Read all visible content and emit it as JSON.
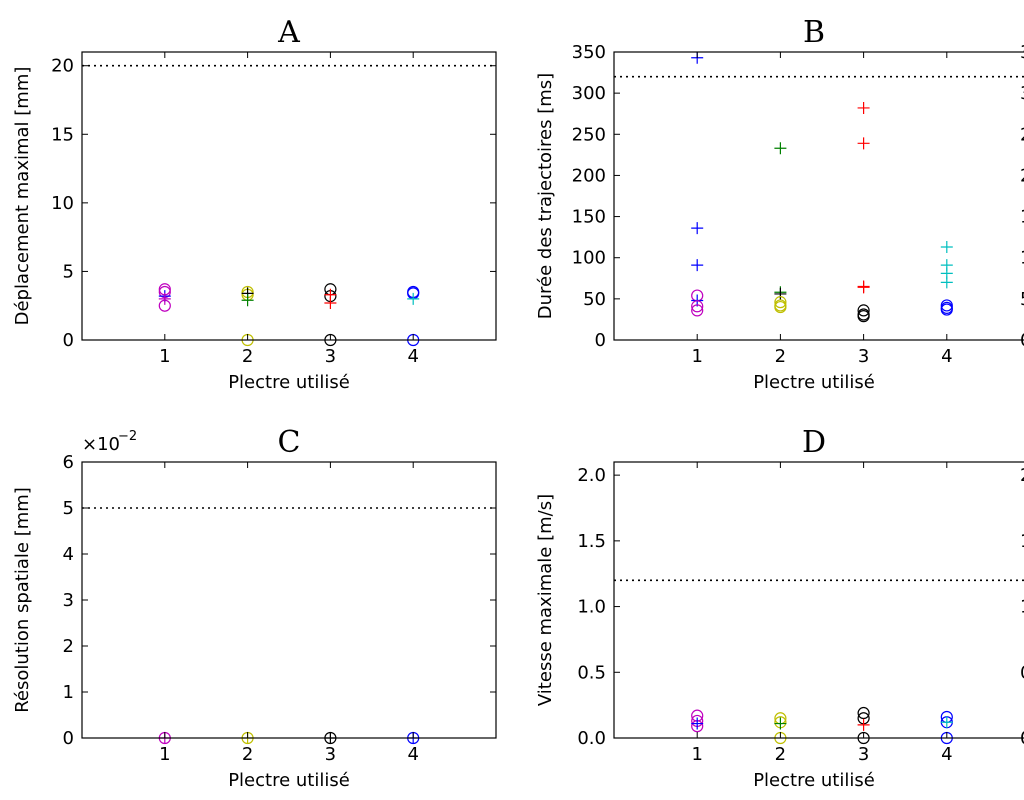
{
  "colors": {
    "magenta": "#bf00bf",
    "yellow": "#bfbf00",
    "black": "#000000",
    "blue": "#0000ff",
    "red": "#ff0000",
    "green": "#008000",
    "cyan": "#00bfbf"
  },
  "chart_data": [
    {
      "type": "scatter",
      "title": "A",
      "xlabel": "Plectre utilisé",
      "ylabel": "Déplacement maximal [mm]",
      "xlim": [
        0,
        5
      ],
      "ylim": [
        0,
        21
      ],
      "xticks": [
        1,
        2,
        3,
        4
      ],
      "xtick_labels": [
        "1",
        "2",
        "3",
        "4"
      ],
      "yticks": [
        0,
        5,
        10,
        15,
        20
      ],
      "ytick_labels": [
        "0",
        "5",
        "10",
        "15",
        "20"
      ],
      "offset_text": "",
      "reference_line": 20,
      "right_edge_labels": false,
      "points": [
        {
          "x": 1,
          "y": 3.7,
          "marker": "circle",
          "color": "#bf00bf"
        },
        {
          "x": 1,
          "y": 3.5,
          "marker": "circle",
          "color": "#bf00bf"
        },
        {
          "x": 1,
          "y": 2.5,
          "marker": "circle",
          "color": "#bf00bf"
        },
        {
          "x": 1,
          "y": 3.2,
          "marker": "plus",
          "color": "#0000ff"
        },
        {
          "x": 1,
          "y": 3.0,
          "marker": "plus",
          "color": "#bf00bf"
        },
        {
          "x": 2,
          "y": 3.5,
          "marker": "circle",
          "color": "#bfbf00"
        },
        {
          "x": 2,
          "y": 3.3,
          "marker": "circle",
          "color": "#bfbf00"
        },
        {
          "x": 2,
          "y": 0.0,
          "marker": "circle",
          "color": "#bfbf00"
        },
        {
          "x": 2,
          "y": 3.4,
          "marker": "plus",
          "color": "#000000"
        },
        {
          "x": 2,
          "y": 2.9,
          "marker": "plus",
          "color": "#008000"
        },
        {
          "x": 3,
          "y": 3.7,
          "marker": "circle",
          "color": "#000000"
        },
        {
          "x": 3,
          "y": 3.2,
          "marker": "circle",
          "color": "#000000"
        },
        {
          "x": 3,
          "y": 0.0,
          "marker": "circle",
          "color": "#000000"
        },
        {
          "x": 3,
          "y": 2.7,
          "marker": "plus",
          "color": "#ff0000"
        },
        {
          "x": 3,
          "y": 3.3,
          "marker": "plus",
          "color": "#ff0000"
        },
        {
          "x": 4,
          "y": 3.5,
          "marker": "circle",
          "color": "#0000ff"
        },
        {
          "x": 4,
          "y": 3.4,
          "marker": "circle",
          "color": "#0000ff"
        },
        {
          "x": 4,
          "y": 0.0,
          "marker": "circle",
          "color": "#0000ff"
        },
        {
          "x": 4,
          "y": 3.0,
          "marker": "plus",
          "color": "#00bfbf"
        }
      ]
    },
    {
      "type": "scatter",
      "title": "B",
      "xlabel": "Plectre utilisé",
      "ylabel": "Durée des trajectoires [ms]",
      "xlim": [
        0,
        5
      ],
      "ylim": [
        0,
        350
      ],
      "xticks": [
        1,
        2,
        3,
        4
      ],
      "xtick_labels": [
        "1",
        "2",
        "3",
        "4"
      ],
      "yticks": [
        0,
        50,
        100,
        150,
        200,
        250,
        300,
        350
      ],
      "ytick_labels": [
        "0",
        "50",
        "100",
        "150",
        "200",
        "250",
        "300",
        "350"
      ],
      "offset_text": "",
      "reference_line": 320,
      "right_edge_labels": true,
      "points": [
        {
          "x": 1,
          "y": 343,
          "marker": "plus",
          "color": "#0000ff"
        },
        {
          "x": 1,
          "y": 136,
          "marker": "plus",
          "color": "#0000ff"
        },
        {
          "x": 1,
          "y": 91,
          "marker": "plus",
          "color": "#0000ff"
        },
        {
          "x": 1,
          "y": 54,
          "marker": "circle",
          "color": "#bf00bf"
        },
        {
          "x": 1,
          "y": 48,
          "marker": "plus",
          "color": "#0000ff"
        },
        {
          "x": 1,
          "y": 41,
          "marker": "circle",
          "color": "#bf00bf"
        },
        {
          "x": 1,
          "y": 36,
          "marker": "circle",
          "color": "#bf00bf"
        },
        {
          "x": 2,
          "y": 233,
          "marker": "plus",
          "color": "#008000"
        },
        {
          "x": 2,
          "y": 58,
          "marker": "plus",
          "color": "#008000"
        },
        {
          "x": 2,
          "y": 56,
          "marker": "plus",
          "color": "#000000"
        },
        {
          "x": 2,
          "y": 46,
          "marker": "circle",
          "color": "#bfbf00"
        },
        {
          "x": 2,
          "y": 42,
          "marker": "circle",
          "color": "#bfbf00"
        },
        {
          "x": 2,
          "y": 40,
          "marker": "circle",
          "color": "#bfbf00"
        },
        {
          "x": 3,
          "y": 282,
          "marker": "plus",
          "color": "#ff0000"
        },
        {
          "x": 3,
          "y": 239,
          "marker": "plus",
          "color": "#ff0000"
        },
        {
          "x": 3,
          "y": 65,
          "marker": "plus",
          "color": "#ff0000"
        },
        {
          "x": 3,
          "y": 64,
          "marker": "plus",
          "color": "#ff0000"
        },
        {
          "x": 3,
          "y": 36,
          "marker": "circle",
          "color": "#000000"
        },
        {
          "x": 3,
          "y": 31,
          "marker": "circle",
          "color": "#000000"
        },
        {
          "x": 3,
          "y": 29,
          "marker": "circle",
          "color": "#000000"
        },
        {
          "x": 4,
          "y": 113,
          "marker": "plus",
          "color": "#00bfbf"
        },
        {
          "x": 4,
          "y": 91,
          "marker": "plus",
          "color": "#00bfbf"
        },
        {
          "x": 4,
          "y": 81,
          "marker": "plus",
          "color": "#00bfbf"
        },
        {
          "x": 4,
          "y": 70,
          "marker": "plus",
          "color": "#00bfbf"
        },
        {
          "x": 4,
          "y": 42,
          "marker": "circle",
          "color": "#0000ff"
        },
        {
          "x": 4,
          "y": 39,
          "marker": "circle",
          "color": "#0000ff"
        },
        {
          "x": 4,
          "y": 37,
          "marker": "circle",
          "color": "#0000ff"
        }
      ]
    },
    {
      "type": "scatter",
      "title": "C",
      "xlabel": "Plectre utilisé",
      "ylabel": "Résolution spatiale [mm]",
      "xlim": [
        0,
        5
      ],
      "ylim": [
        0,
        6
      ],
      "xticks": [
        1,
        2,
        3,
        4
      ],
      "xtick_labels": [
        "1",
        "2",
        "3",
        "4"
      ],
      "yticks": [
        0,
        1,
        2,
        3,
        4,
        5,
        6
      ],
      "ytick_labels": [
        "0",
        "1",
        "2",
        "3",
        "4",
        "5",
        "6"
      ],
      "offset_text": "×10",
      "offset_exponent": "−2",
      "reference_line": 5,
      "right_edge_labels": false,
      "points": [
        {
          "x": 1,
          "y": 0.0,
          "marker": "circle",
          "color": "#bf00bf"
        },
        {
          "x": 1,
          "y": 0.0,
          "marker": "plus",
          "color": "#bf00bf"
        },
        {
          "x": 2,
          "y": 0.0,
          "marker": "circle",
          "color": "#bfbf00"
        },
        {
          "x": 2,
          "y": 0.0,
          "marker": "plus",
          "color": "#bfbf00"
        },
        {
          "x": 3,
          "y": 0.0,
          "marker": "circle",
          "color": "#000000"
        },
        {
          "x": 3,
          "y": 0.0,
          "marker": "plus",
          "color": "#000000"
        },
        {
          "x": 4,
          "y": 0.0,
          "marker": "circle",
          "color": "#0000ff"
        },
        {
          "x": 4,
          "y": 0.0,
          "marker": "plus",
          "color": "#0000ff"
        }
      ]
    },
    {
      "type": "scatter",
      "title": "D",
      "xlabel": "Plectre utilisé",
      "ylabel": "Vitesse maximale [m/s]",
      "xlim": [
        0,
        5
      ],
      "ylim": [
        0,
        2.1
      ],
      "xticks": [
        1,
        2,
        3,
        4
      ],
      "xtick_labels": [
        "1",
        "2",
        "3",
        "4"
      ],
      "yticks": [
        0,
        0.5,
        1.0,
        1.5,
        2.0
      ],
      "ytick_labels": [
        "0.0",
        "0.5",
        "1.0",
        "1.5",
        "2.0"
      ],
      "offset_text": "",
      "reference_line": 1.2,
      "right_edge_labels": true,
      "points": [
        {
          "x": 1,
          "y": 0.17,
          "marker": "circle",
          "color": "#bf00bf"
        },
        {
          "x": 1,
          "y": 0.13,
          "marker": "circle",
          "color": "#bf00bf"
        },
        {
          "x": 1,
          "y": 0.09,
          "marker": "circle",
          "color": "#bf00bf"
        },
        {
          "x": 1,
          "y": 0.11,
          "marker": "plus",
          "color": "#0000ff"
        },
        {
          "x": 2,
          "y": 0.15,
          "marker": "circle",
          "color": "#bfbf00"
        },
        {
          "x": 2,
          "y": 0.12,
          "marker": "circle",
          "color": "#bfbf00"
        },
        {
          "x": 2,
          "y": 0.0,
          "marker": "circle",
          "color": "#bfbf00"
        },
        {
          "x": 2,
          "y": 0.11,
          "marker": "plus",
          "color": "#008000"
        },
        {
          "x": 3,
          "y": 0.19,
          "marker": "circle",
          "color": "#000000"
        },
        {
          "x": 3,
          "y": 0.15,
          "marker": "circle",
          "color": "#000000"
        },
        {
          "x": 3,
          "y": 0.0,
          "marker": "circle",
          "color": "#000000"
        },
        {
          "x": 3,
          "y": 0.1,
          "marker": "plus",
          "color": "#ff0000"
        },
        {
          "x": 4,
          "y": 0.16,
          "marker": "circle",
          "color": "#0000ff"
        },
        {
          "x": 4,
          "y": 0.12,
          "marker": "circle",
          "color": "#0000ff"
        },
        {
          "x": 4,
          "y": 0.0,
          "marker": "circle",
          "color": "#0000ff"
        },
        {
          "x": 4,
          "y": 0.12,
          "marker": "plus",
          "color": "#00bfbf"
        }
      ]
    }
  ]
}
